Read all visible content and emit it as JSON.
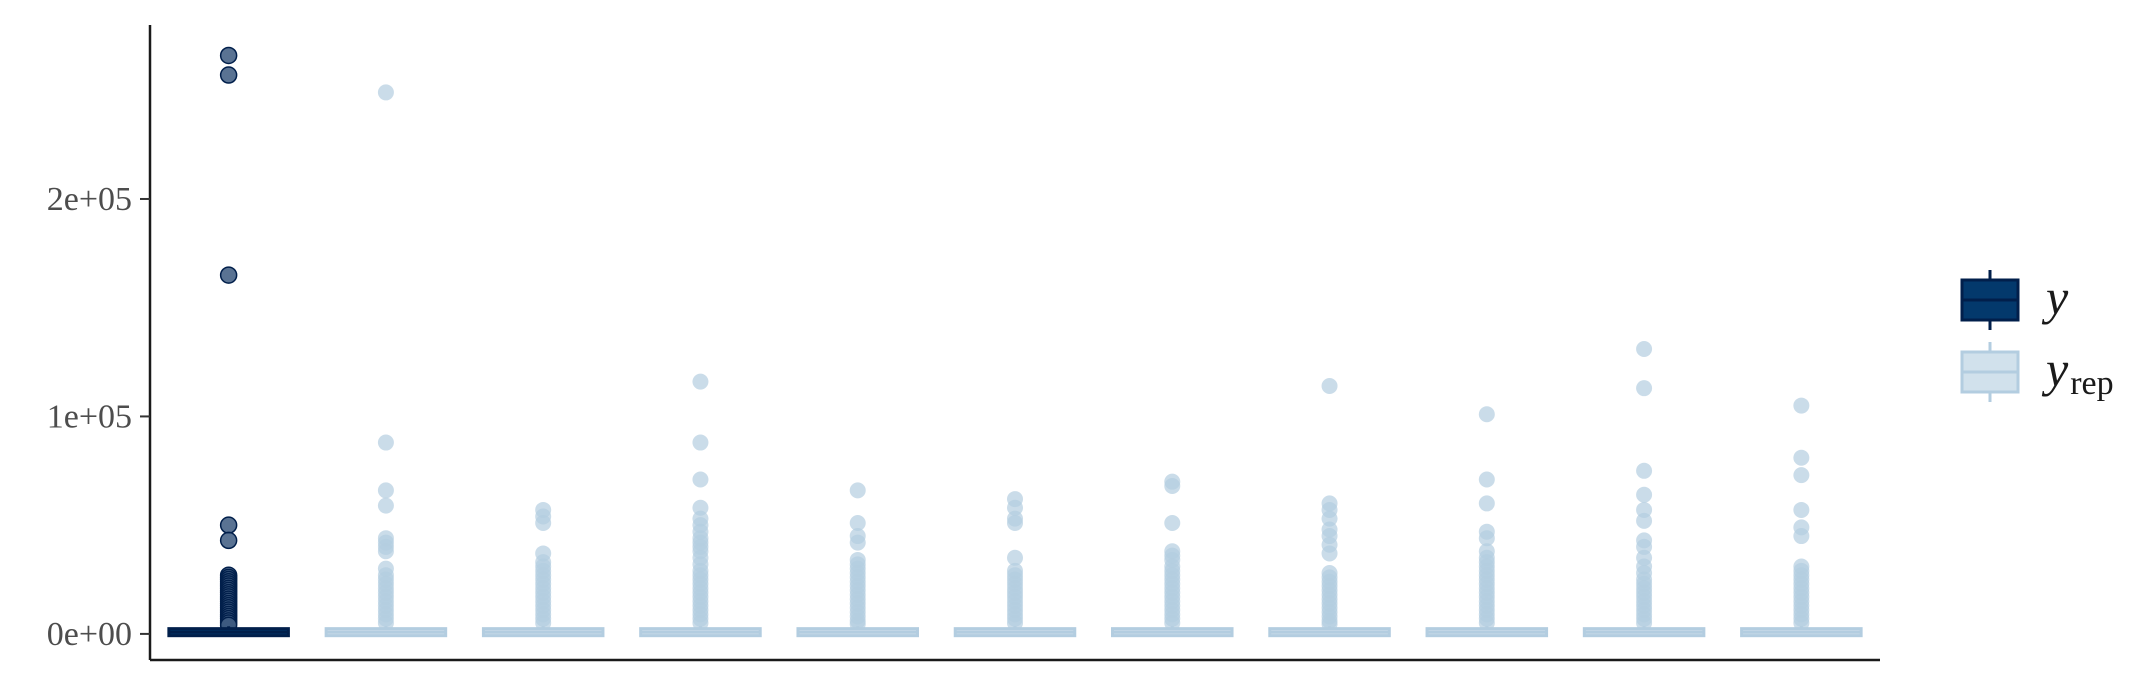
{
  "chart_data": {
    "type": "boxplot",
    "title": "",
    "xlabel": "",
    "ylabel": "",
    "ylim": [
      -12000,
      280000
    ],
    "yticks": [
      0,
      100000,
      200000
    ],
    "ytick_labels": [
      "0e+00",
      "1e+05",
      "2e+05"
    ],
    "grid": false,
    "legend_position": "right",
    "colors": {
      "y": "#011f4b",
      "y_fill": "#03396c",
      "yrep": "#b3cde0",
      "yrep_fill": "#d1e1ec"
    },
    "legend": [
      {
        "key": "y",
        "label": "y",
        "sub": ""
      },
      {
        "key": "yrep",
        "label": "y",
        "sub": "rep"
      }
    ],
    "boxes": [
      {
        "series": "y",
        "median": 800,
        "q1": 100,
        "q3": 1500,
        "whisker_low": 0,
        "whisker_high": 3500,
        "outliers": [
          266000,
          257000,
          165000,
          50000,
          43000,
          27000,
          26000,
          25000,
          24000,
          23000,
          22000,
          21000,
          20000,
          19000,
          18000,
          17000,
          16000,
          15000,
          14000,
          13000,
          12000,
          11000,
          10000,
          9000,
          8000,
          7000,
          6000,
          5000,
          4000
        ]
      },
      {
        "series": "yrep",
        "median": 800,
        "q1": 100,
        "q3": 1500,
        "whisker_low": 0,
        "whisker_high": 3500,
        "outliers": [
          249000,
          88000,
          66000,
          59000,
          44000,
          42000,
          40000,
          38000,
          30000,
          27000,
          25000,
          23000,
          21000,
          19000,
          17000,
          15000,
          13000,
          11000,
          9000,
          7000,
          5000
        ]
      },
      {
        "series": "yrep",
        "median": 800,
        "q1": 100,
        "q3": 1500,
        "whisker_low": 0,
        "whisker_high": 3500,
        "outliers": [
          57000,
          54000,
          51000,
          37000,
          33000,
          31000,
          29000,
          27000,
          25000,
          23000,
          21000,
          19000,
          17000,
          15000,
          13000,
          11000,
          9000,
          7000,
          5000
        ]
      },
      {
        "series": "yrep",
        "median": 800,
        "q1": 100,
        "q3": 1500,
        "whisker_low": 0,
        "whisker_high": 3500,
        "outliers": [
          116000,
          88000,
          71000,
          58000,
          53000,
          50000,
          47000,
          44000,
          42000,
          40000,
          38000,
          35000,
          32000,
          29000,
          27000,
          25000,
          23000,
          21000,
          19000,
          17000,
          15000,
          13000,
          11000,
          9000,
          7000,
          5000
        ]
      },
      {
        "series": "yrep",
        "median": 800,
        "q1": 100,
        "q3": 1500,
        "whisker_low": 0,
        "whisker_high": 3500,
        "outliers": [
          66000,
          51000,
          45000,
          42000,
          34000,
          32000,
          30000,
          28000,
          26000,
          24000,
          22000,
          20000,
          18000,
          16000,
          14000,
          12000,
          10000,
          8000,
          6000,
          4500
        ]
      },
      {
        "series": "yrep",
        "median": 800,
        "q1": 100,
        "q3": 1500,
        "whisker_low": 0,
        "whisker_high": 3500,
        "outliers": [
          62000,
          58000,
          53000,
          51000,
          35000,
          29000,
          27000,
          25000,
          23000,
          21000,
          19000,
          17000,
          15000,
          13000,
          11000,
          9000,
          7000,
          5000
        ]
      },
      {
        "series": "yrep",
        "median": 800,
        "q1": 100,
        "q3": 1500,
        "whisker_low": 0,
        "whisker_high": 3500,
        "outliers": [
          70000,
          68000,
          51000,
          38000,
          36000,
          34000,
          31000,
          29000,
          27000,
          25000,
          23000,
          21000,
          19000,
          17000,
          15000,
          13000,
          11000,
          9000,
          7000,
          5000
        ]
      },
      {
        "series": "yrep",
        "median": 800,
        "q1": 100,
        "q3": 1500,
        "whisker_low": 0,
        "whisker_high": 3500,
        "outliers": [
          114000,
          60000,
          57000,
          53000,
          48000,
          45000,
          41000,
          37000,
          28000,
          26000,
          24000,
          22000,
          20000,
          18000,
          16000,
          14000,
          12000,
          10000,
          8000,
          6000,
          4500
        ]
      },
      {
        "series": "yrep",
        "median": 800,
        "q1": 100,
        "q3": 1500,
        "whisker_low": 0,
        "whisker_high": 3500,
        "outliers": [
          101000,
          71000,
          60000,
          47000,
          44000,
          38000,
          35000,
          33000,
          31000,
          29000,
          27000,
          25000,
          23000,
          21000,
          19000,
          17000,
          15000,
          13000,
          11000,
          9000,
          7000,
          5000
        ]
      },
      {
        "series": "yrep",
        "median": 800,
        "q1": 100,
        "q3": 1500,
        "whisker_low": 0,
        "whisker_high": 3500,
        "outliers": [
          131000,
          113000,
          75000,
          64000,
          57000,
          52000,
          43000,
          40000,
          35000,
          31000,
          28000,
          25000,
          23000,
          21000,
          19000,
          17000,
          15000,
          13000,
          11000,
          9000,
          7000,
          5000
        ]
      },
      {
        "series": "yrep",
        "median": 800,
        "q1": 100,
        "q3": 1500,
        "whisker_low": 0,
        "whisker_high": 3500,
        "outliers": [
          105000,
          81000,
          73000,
          57000,
          49000,
          45000,
          31000,
          29000,
          27000,
          25000,
          23000,
          21000,
          19000,
          17000,
          15000,
          13000,
          11000,
          9000,
          7000,
          5000
        ]
      }
    ]
  }
}
